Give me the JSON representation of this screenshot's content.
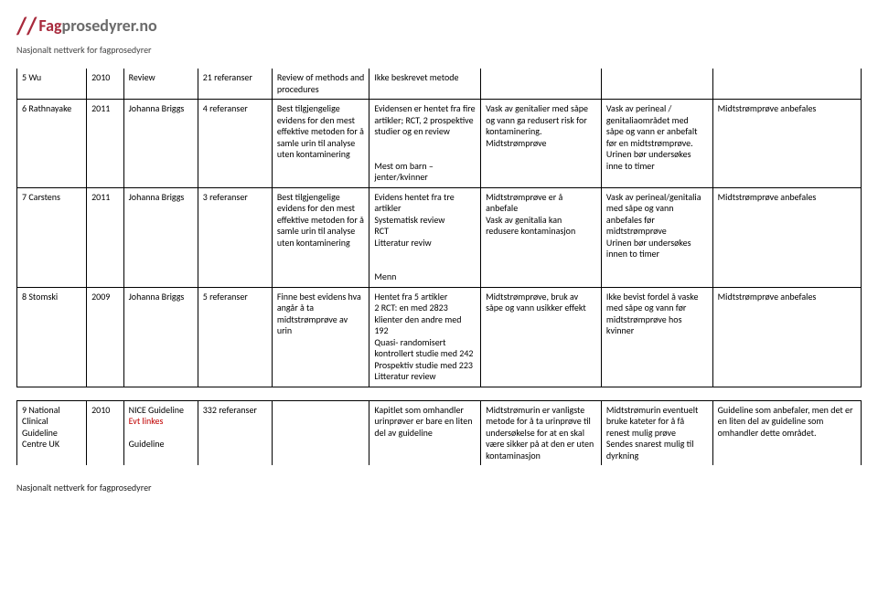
{
  "brand": {
    "slash": "//",
    "part1": "Fag",
    "part2": "prosedyrer.no",
    "subtitle": "Nasjonalt nettverk for fagprosedyrer"
  },
  "footer": "Nasjonalt nettverk for fagprosedyrer",
  "rows": [
    {
      "c1": "5 Wu",
      "c2": "2010",
      "c3": "Review",
      "c4": "21 referanser",
      "c5": "Review of methods and procedures",
      "c6": "Ikke beskrevet metode",
      "c7": "",
      "c8": "",
      "c9": ""
    },
    {
      "c1": "6 Rathnayake",
      "c2": "2011",
      "c3": "Johanna Briggs",
      "c4": "4 referanser",
      "c5": "Best tilgjengelige evidens for den mest effektive metoden for å samle urin til analyse uten kontaminering",
      "c6": "Evidensen er hentet fra fire artikler; RCT, 2 prospektive studier og en review\n\nMest om barn – jenter/kvinner",
      "c7": "Vask av genitalier med såpe og vann ga redusert risk for kontaminering. Midtstrømprøve",
      "c8": "Vask av perineal / genitaliaområdet med såpe og vann er anbefalt før en midtstrømprøve. Urinen bør undersøkes inne to timer",
      "c9": "Midtstrømprøve anbefales"
    },
    {
      "c1": "7 Carstens",
      "c2": "2011",
      "c3": "Johanna Briggs",
      "c4": "3 referanser",
      "c5": "Best tilgjengelige evidens for den mest effektive metoden for å samle urin til analyse uten kontaminering",
      "c6": "Evidens hentet fra tre artikler\nSystematisk review\nRCT\nLitteratur reviw\n\nMenn",
      "c7": "Midtstrømprøve er å anbefale\nVask av genitalia kan redusere kontaminasjon",
      "c8": "Vask av perineal/genitalia med såpe og vann anbefales før midtstrømprøve\nUrinen bør undersøkes innen to timer",
      "c9": "Midtstrømprøve anbefales"
    },
    {
      "c1": "8 Stomski",
      "c2": "2009",
      "c3": "Johanna Briggs",
      "c4": "5 referanser",
      "c5": "Finne best evidens hva angår å ta midtstrømprøve av urin",
      "c6": "Hentet fra 5 artikler\n2 RCT: en med 2823 klienter den andre med 192\nQuasi- randomisert kontrollert studie med 242\nProspektiv studie med 223\nLitteratur review",
      "c7": "Midtstrømprøve, bruk av såpe og vann usikker effekt",
      "c8": "Ikke bevist fordel å vaske med såpe og vann før midtstrømprøve hos kvinner",
      "c9": "Midtstrømprøve anbefales"
    },
    {
      "c1": "9 National Clinical Guideline Centre UK",
      "c2": "2010",
      "c3a": "NICE Guideline",
      "c3b": "Evt linkes",
      "c3c": "Guideline",
      "c4": "332 referanser",
      "c5": "",
      "c6": "Kapitlet som omhandler urinprøver er bare en liten del av guideline",
      "c7": "Midtstrømurin er vanligste metode for å ta urinprøve til undersøkelse for at en skal være sikker på at den er uten kontaminasjon",
      "c8": "Midtstrømurin eventuelt bruke kateter for å få renest mulig prøve\nSendes snarest mulig til dyrkning",
      "c9": "Guideline som anbefaler, men det er en liten del av guideline som omhandler dette området."
    }
  ]
}
